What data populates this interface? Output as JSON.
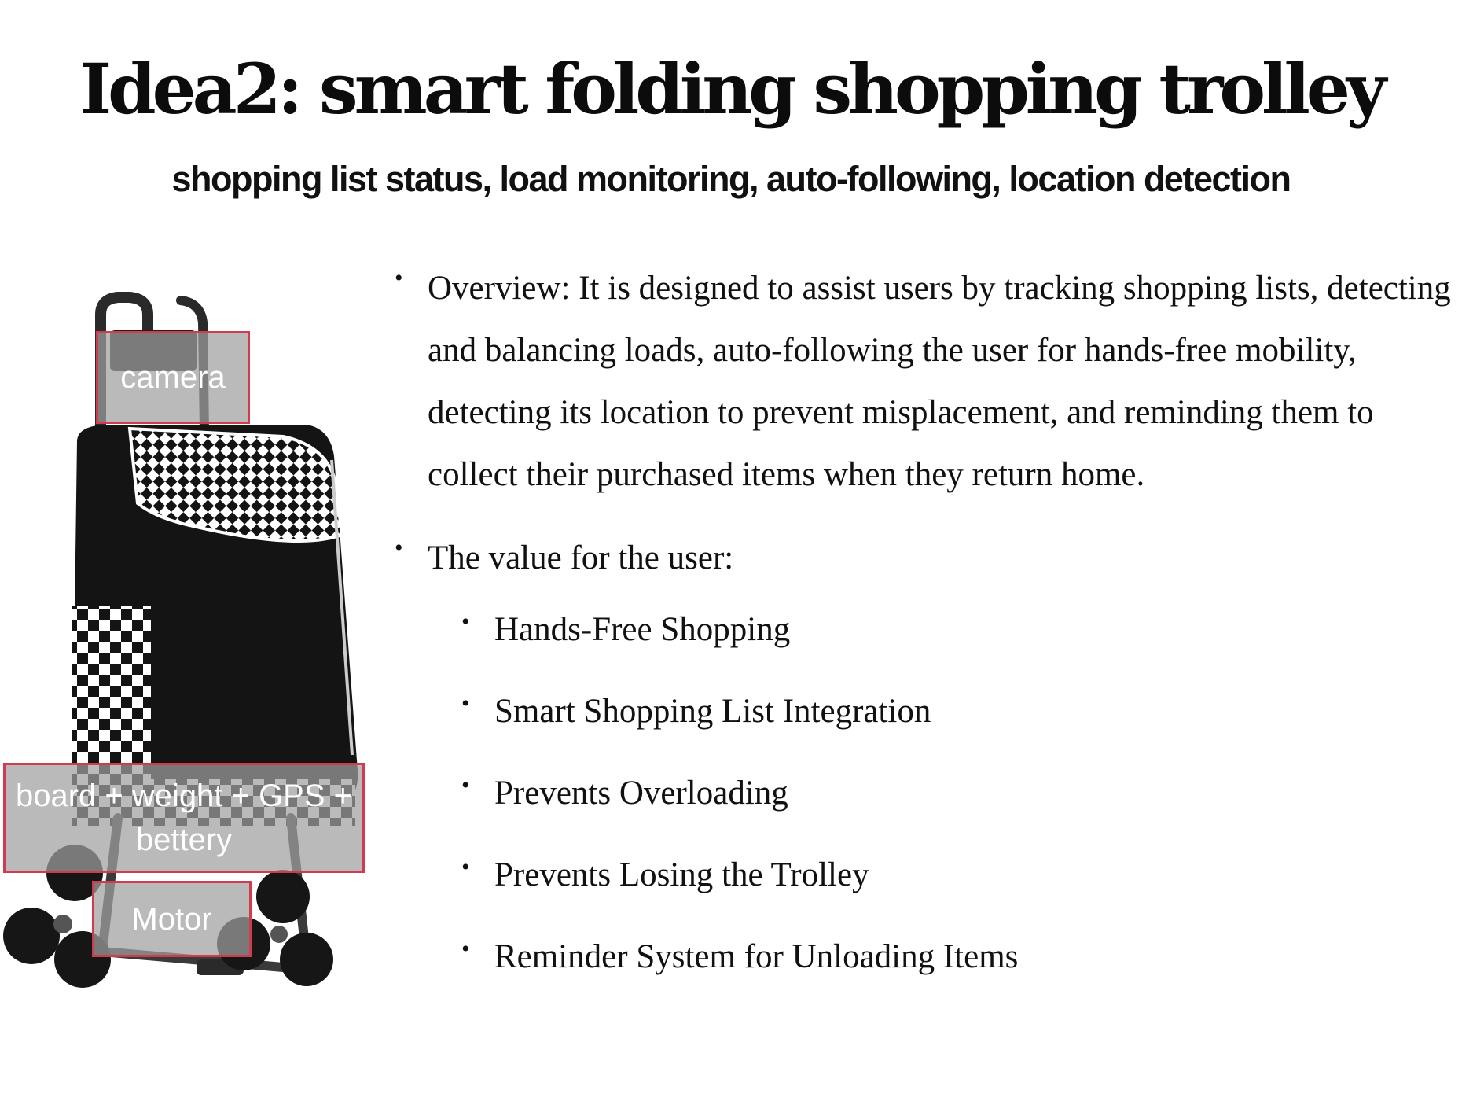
{
  "slide": {
    "title": "Idea2: smart folding shopping trolley",
    "subtitle": "shopping list status, load monitoring, auto-following, location detection"
  },
  "figure": {
    "image_description": "black shopping trolley bag with checkered flap and stair-climbing wheels",
    "labels": {
      "camera": "camera",
      "board": "board + weight + GPS + bettery",
      "motor": "Motor"
    },
    "colors": {
      "label_border": "#d13a4f",
      "bag": "#141414",
      "frame": "#3a3a3a"
    }
  },
  "content": {
    "bullet_symbol": "•",
    "overview": "Overview: It is designed to assist users by tracking shopping lists, detecting and balancing loads, auto-following the user for hands-free mobility, detecting its location to prevent misplacement, and reminding them to collect their purchased items when they return home.",
    "value_heading": "The value for the user:",
    "values": [
      "Hands-Free Shopping",
      "Smart Shopping List Integration",
      "Prevents Overloading",
      "Prevents Losing the Trolley",
      "Reminder System for Unloading Items"
    ]
  }
}
